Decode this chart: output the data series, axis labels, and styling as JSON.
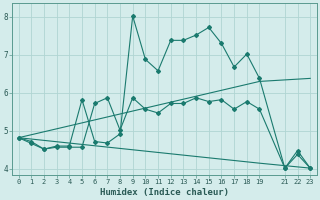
{
  "xlabel": "Humidex (Indice chaleur)",
  "bg_color": "#d4eceb",
  "grid_color": "#b0d5d3",
  "line_color": "#1a7a6e",
  "xlim": [
    -0.5,
    23.5
  ],
  "ylim": [
    3.85,
    8.35
  ],
  "yticks": [
    4,
    5,
    6,
    7,
    8
  ],
  "xtick_positions": [
    0,
    1,
    2,
    3,
    4,
    5,
    6,
    7,
    8,
    9,
    10,
    11,
    12,
    13,
    14,
    15,
    16,
    17,
    18,
    19,
    21,
    22,
    23
  ],
  "xtick_labels": [
    "0",
    "1",
    "2",
    "3",
    "4",
    "5",
    "6",
    "7",
    "8",
    "9",
    "10",
    "11",
    "12",
    "13",
    "14",
    "15",
    "16",
    "17",
    "18",
    "19",
    "21",
    "22",
    "23"
  ],
  "series1_x": [
    0,
    1,
    2,
    3,
    4,
    5,
    6,
    7,
    8,
    9,
    10,
    11,
    12,
    13,
    14,
    15,
    16,
    17,
    18,
    19,
    21,
    22,
    23
  ],
  "series1_y": [
    4.82,
    4.72,
    4.52,
    4.6,
    4.6,
    5.82,
    4.72,
    4.68,
    4.92,
    8.02,
    6.88,
    6.58,
    7.38,
    7.38,
    7.52,
    7.72,
    7.3,
    6.68,
    7.02,
    6.38,
    4.02,
    4.48,
    4.02
  ],
  "series2_x": [
    0,
    1,
    2,
    3,
    4,
    5,
    6,
    7,
    8,
    9,
    10,
    11,
    12,
    13,
    14,
    15,
    16,
    17,
    18,
    19,
    21,
    22,
    23
  ],
  "series2_y": [
    4.82,
    4.67,
    4.52,
    4.57,
    4.57,
    4.57,
    5.72,
    5.87,
    5.02,
    5.87,
    5.57,
    5.47,
    5.72,
    5.72,
    5.87,
    5.77,
    5.82,
    5.57,
    5.77,
    5.57,
    4.02,
    4.38,
    4.02
  ],
  "series3_x": [
    0,
    19,
    23
  ],
  "series3_y": [
    4.82,
    6.3,
    6.38
  ],
  "series4_x": [
    0,
    19,
    23
  ],
  "series4_y": [
    4.82,
    4.15,
    4.02
  ]
}
